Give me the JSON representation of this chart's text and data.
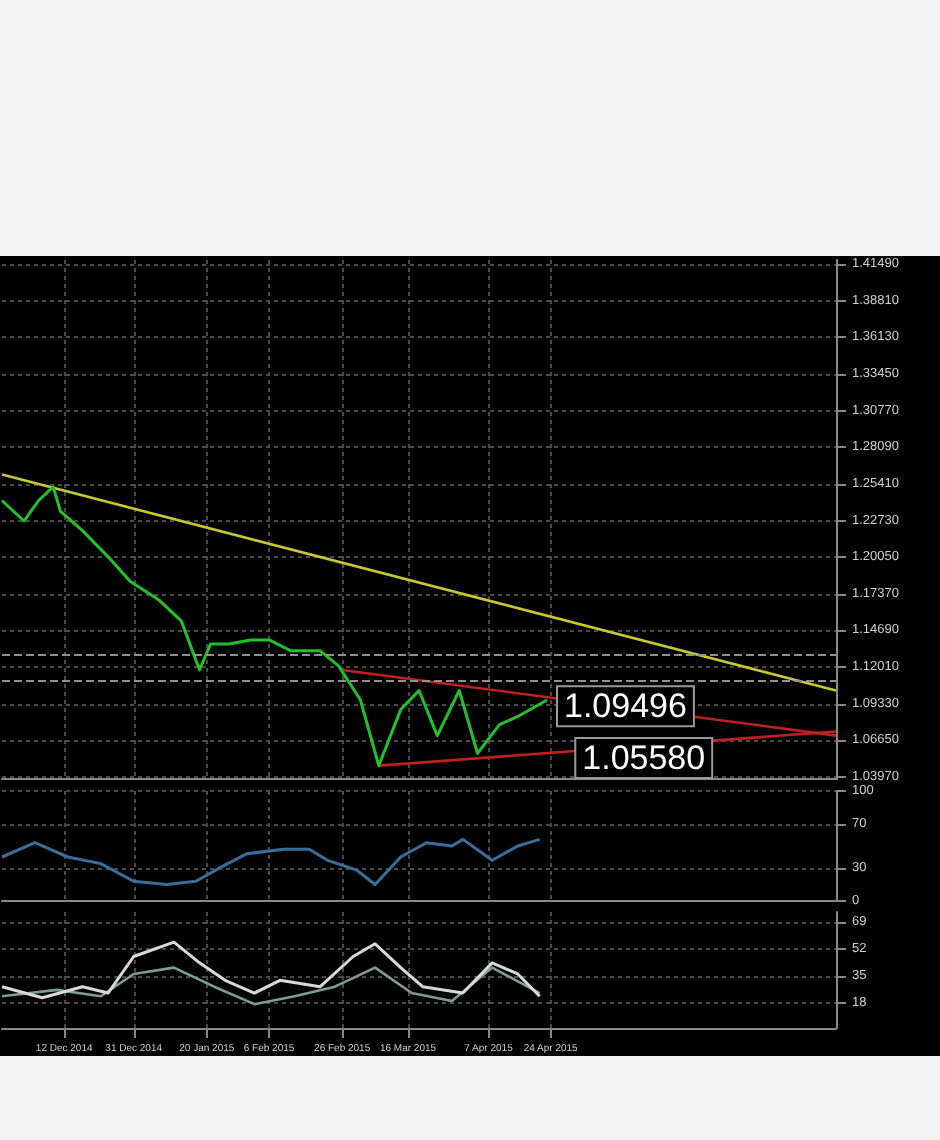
{
  "chart_data": [
    {
      "type": "line",
      "xlim": [
        "2014-11-25",
        "2015-07-11"
      ],
      "ylim": [
        1.038,
        1.418
      ],
      "tick_labels": "y",
      "grid": true,
      "xticks": [
        {
          "value": "2014-12-12",
          "label": null
        },
        {
          "value": "2014-12-31",
          "label": null
        },
        {
          "value": "2015-01-20",
          "label": null
        },
        {
          "value": "2015-02-06",
          "label": null
        },
        {
          "value": "2015-02-26",
          "label": null
        },
        {
          "value": "2015-03-16",
          "label": null
        },
        {
          "value": "2015-04-07",
          "label": null
        },
        {
          "value": "2015-04-24",
          "label": null
        }
      ],
      "yticks": [
        {
          "value": 1.0397,
          "label": "1.03970"
        },
        {
          "value": 1.0665,
          "label": "1.06650"
        },
        {
          "value": 1.0933,
          "label": "1.09330"
        },
        {
          "value": 1.1201,
          "label": "1.12010"
        },
        {
          "value": 1.1469,
          "label": "1.14690"
        },
        {
          "value": 1.1737,
          "label": "1.17370"
        },
        {
          "value": 1.2005,
          "label": "1.20050"
        },
        {
          "value": 1.2273,
          "label": "1.22730"
        },
        {
          "value": 1.2541,
          "label": "1.25410"
        },
        {
          "value": 1.2809,
          "label": "1.28090"
        },
        {
          "value": 1.3077,
          "label": "1.30770"
        },
        {
          "value": 1.3345,
          "label": "1.33450"
        },
        {
          "value": 1.3613,
          "label": "1.36130"
        },
        {
          "value": 1.3881,
          "label": "1.38810"
        },
        {
          "value": 1.4149,
          "label": "1.41490"
        }
      ],
      "series": [
        {
          "color": "#22c02a",
          "x": [
            "2014-11-25",
            "2014-12-01",
            "2014-12-05",
            "2014-12-09",
            "2014-12-11",
            "2014-12-17",
            "2014-12-25",
            "2014-12-30",
            "2015-01-07",
            "2015-01-13",
            "2015-01-18",
            "2015-01-21",
            "2015-01-26",
            "2015-02-01",
            "2015-02-06",
            "2015-02-12",
            "2015-02-20",
            "2015-02-25",
            "2015-03-03",
            "2015-03-08",
            "2015-03-14",
            "2015-03-19",
            "2015-03-24",
            "2015-03-30",
            "2015-04-04",
            "2015-04-10",
            "2015-04-15",
            "2015-04-23"
          ],
          "values": [
            1.242,
            1.227,
            1.242,
            1.252,
            1.234,
            1.22,
            1.198,
            1.183,
            1.169,
            1.154,
            1.118,
            1.137,
            1.137,
            1.14,
            1.14,
            1.132,
            1.132,
            1.121,
            1.096,
            1.048,
            1.089,
            1.103,
            1.07,
            1.103,
            1.057,
            1.078,
            1.084,
            1.096
          ]
        },
        {
          "color": "#c8c830",
          "x": [
            "2014-11-25",
            "2015-07-11"
          ],
          "values": [
            1.261,
            1.103
          ]
        },
        {
          "color": "#c02020",
          "x": [
            "2015-02-26",
            "2015-07-11"
          ],
          "values": [
            1.118,
            1.07
          ]
        },
        {
          "color": "#c02020",
          "x": [
            "2015-03-08",
            "2015-07-11"
          ],
          "values": [
            1.048,
            1.073
          ]
        }
      ],
      "ref_lines": [
        {
          "axis": "y",
          "value": 1.129,
          "color": "#909090",
          "line_style": "dashed"
        },
        {
          "axis": "y",
          "value": 1.109,
          "color": "#909090",
          "line_style": "dashed"
        }
      ],
      "annotations": [
        {
          "text": "1.09496",
          "x": "2015-04-26",
          "y": 1.0915
        },
        {
          "text": "1.05580",
          "x": "2015-05-01",
          "y": 1.0536
        }
      ]
    },
    {
      "type": "line",
      "xlim": [
        "2014-11-25",
        "2015-07-11"
      ],
      "ylim": [
        0,
        100
      ],
      "tick_labels": "y",
      "grid": true,
      "xticks": [
        {
          "value": "2014-12-12",
          "label": null
        },
        {
          "value": "2014-12-31",
          "label": null
        },
        {
          "value": "2015-01-20",
          "label": null
        },
        {
          "value": "2015-02-06",
          "label": null
        },
        {
          "value": "2015-02-26",
          "label": null
        },
        {
          "value": "2015-03-16",
          "label": null
        },
        {
          "value": "2015-04-07",
          "label": null
        },
        {
          "value": "2015-04-24",
          "label": null
        }
      ],
      "yticks": [
        0,
        30,
        70,
        100
      ],
      "series": [
        {
          "color": "#3a6e9a",
          "x": [
            "2014-11-25",
            "2014-12-04",
            "2014-12-13",
            "2014-12-22",
            "2014-12-31",
            "2015-01-09",
            "2015-01-17",
            "2015-01-24",
            "2015-01-31",
            "2015-02-10",
            "2015-02-17",
            "2015-02-22",
            "2015-03-02",
            "2015-03-07",
            "2015-03-14",
            "2015-03-21",
            "2015-03-28",
            "2015-03-31",
            "2015-04-08",
            "2015-04-15",
            "2015-04-21"
          ],
          "values": [
            40,
            53,
            40,
            34,
            18,
            15,
            18,
            31,
            43,
            47,
            47,
            37,
            28,
            15,
            40,
            53,
            50,
            56,
            37,
            50,
            56
          ]
        }
      ]
    },
    {
      "type": "line",
      "xlim": [
        "2014-11-25",
        "2015-07-11"
      ],
      "ylim": [
        2,
        75
      ],
      "grid": true,
      "xticks": [
        {
          "value": "2014-12-12",
          "label": "12 Dec 2014"
        },
        {
          "value": "2014-12-31",
          "label": "31 Dec 2014"
        },
        {
          "value": "2015-01-20",
          "label": "20 Jan 2015"
        },
        {
          "value": "2015-02-06",
          "label": "6 Feb 2015"
        },
        {
          "value": "2015-02-26",
          "label": "26 Feb 2015"
        },
        {
          "value": "2015-03-16",
          "label": "16 Mar 2015"
        },
        {
          "value": "2015-04-07",
          "label": "7 Apr 2015"
        },
        {
          "value": "2015-04-24",
          "label": "24 Apr 2015"
        }
      ],
      "yticks": [
        18,
        35,
        52,
        69
      ],
      "series": [
        {
          "color": "#d8d8d8",
          "x": [
            "2014-11-25",
            "2014-12-06",
            "2014-12-17",
            "2014-12-24",
            "2014-12-31",
            "2015-01-11",
            "2015-01-18",
            "2015-01-25",
            "2015-02-02",
            "2015-02-09",
            "2015-02-20",
            "2015-03-01",
            "2015-03-07",
            "2015-03-14",
            "2015-03-20",
            "2015-03-31",
            "2015-04-08",
            "2015-04-15",
            "2015-04-21"
          ],
          "values": [
            28,
            21,
            28,
            24,
            47,
            56,
            43,
            32,
            24,
            32,
            28,
            47,
            55,
            40,
            28,
            24,
            43,
            36,
            22
          ]
        },
        {
          "color": "#7f9a9a",
          "x": [
            "2014-11-25",
            "2014-12-10",
            "2014-12-22",
            "2014-12-31",
            "2015-01-11",
            "2015-01-22",
            "2015-02-02",
            "2015-02-13",
            "2015-02-24",
            "2015-03-07",
            "2015-03-17",
            "2015-03-28",
            "2015-04-08",
            "2015-04-21"
          ],
          "values": [
            22,
            26,
            22,
            36,
            40,
            28,
            17,
            22,
            28,
            40,
            24,
            19,
            40,
            24
          ]
        }
      ]
    }
  ]
}
